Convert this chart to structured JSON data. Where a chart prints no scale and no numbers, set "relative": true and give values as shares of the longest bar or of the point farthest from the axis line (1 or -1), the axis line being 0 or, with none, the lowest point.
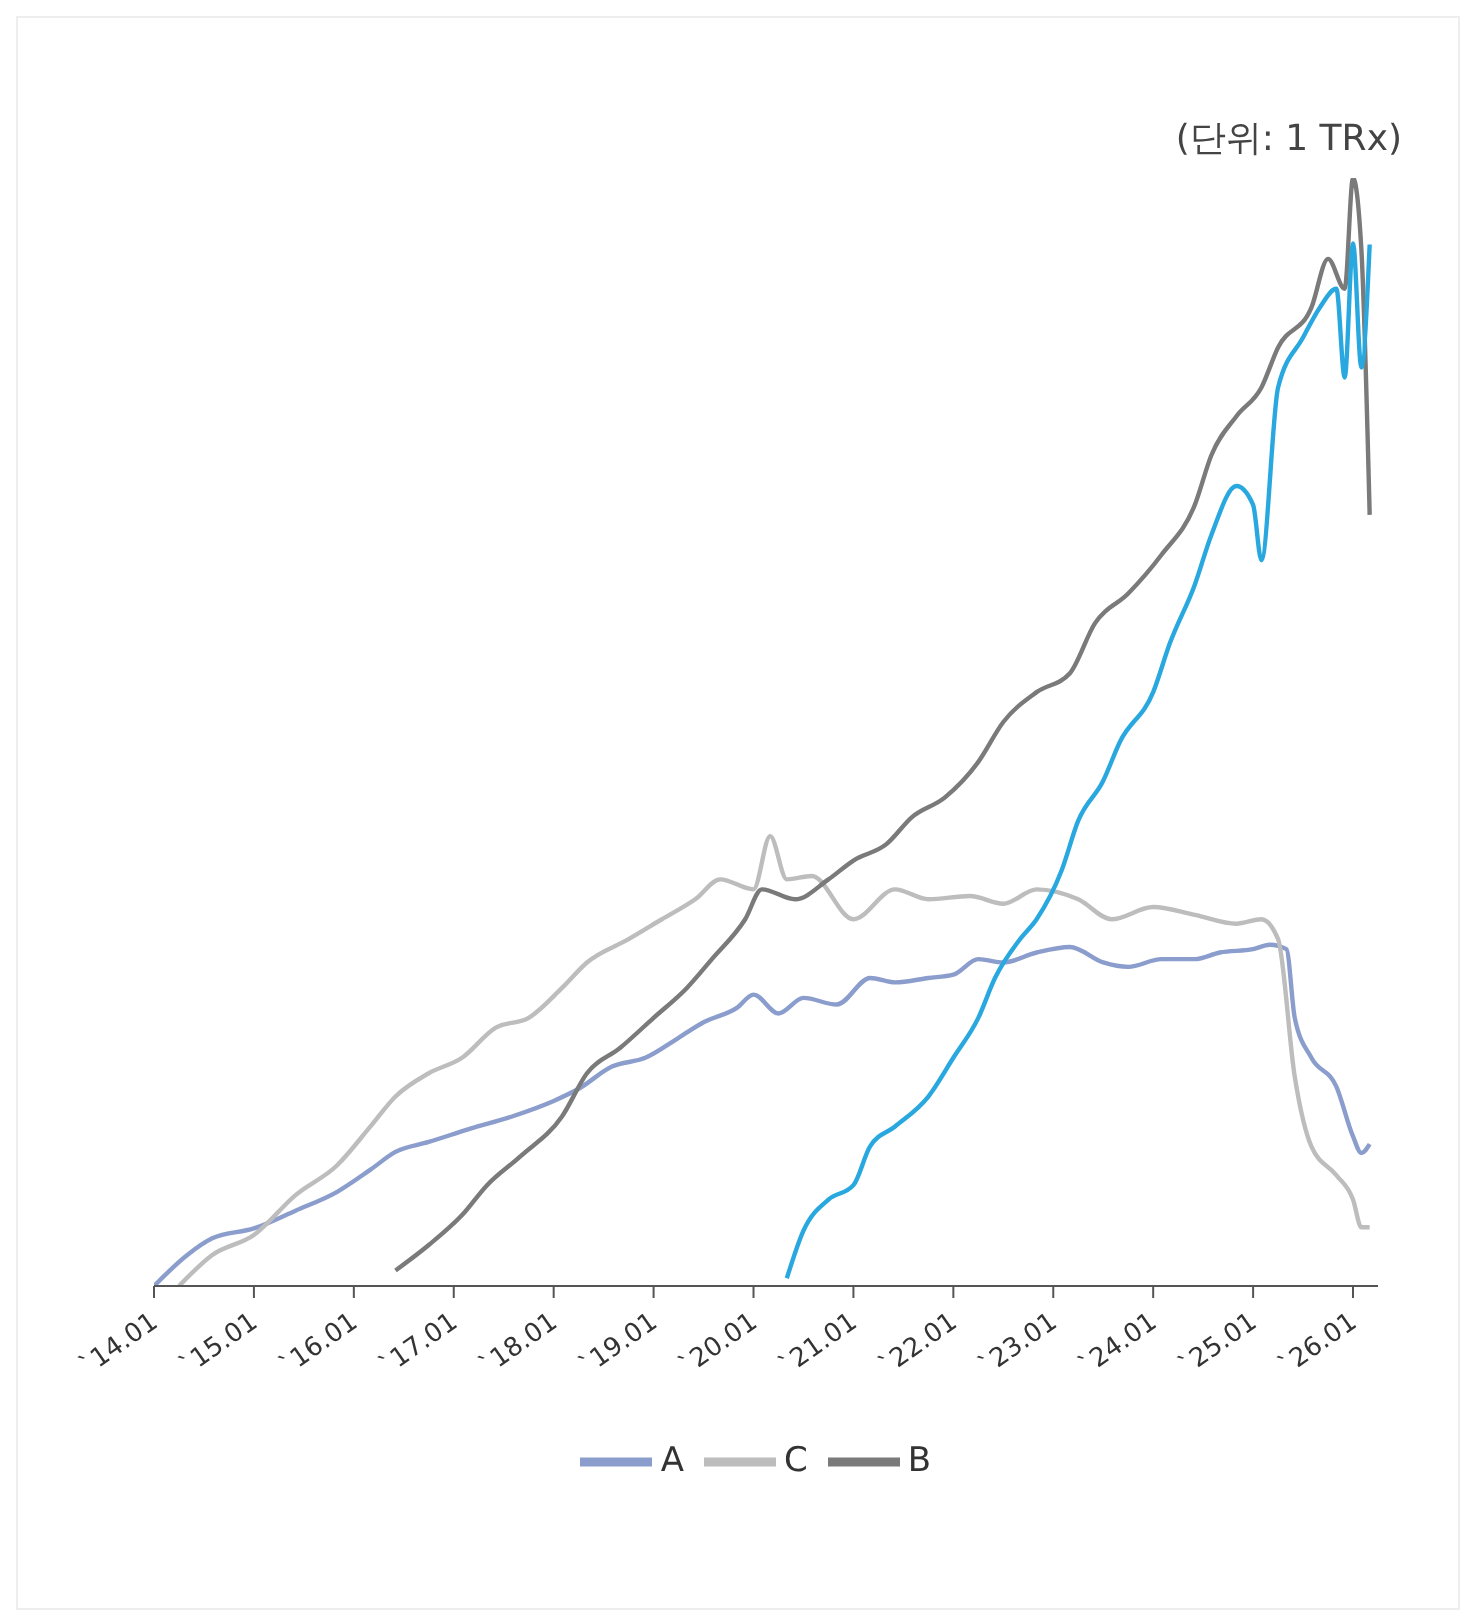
{
  "chart_data": {
    "type": "line",
    "relative": true,
    "annotations": [
      "(단위: 1 TRx)"
    ],
    "xlim": [
      "2014-01",
      "2026-04"
    ],
    "xticks": [
      {
        "value": "2014-01",
        "label": "`14.01"
      },
      {
        "value": "2015-01",
        "label": "`15.01"
      },
      {
        "value": "2016-01",
        "label": "`16.01"
      },
      {
        "value": "2017-01",
        "label": "`17.01"
      },
      {
        "value": "2018-01",
        "label": "`18.01"
      },
      {
        "value": "2019-01",
        "label": "`19.01"
      },
      {
        "value": "2020-01",
        "label": "`20.01"
      },
      {
        "value": "2021-01",
        "label": "`21.01"
      },
      {
        "value": "2022-01",
        "label": "`22.01"
      },
      {
        "value": "2023-01",
        "label": "`23.01"
      },
      {
        "value": "2024-01",
        "label": "`24.01"
      },
      {
        "value": "2025-01",
        "label": "`25.01"
      },
      {
        "value": "2026-01",
        "label": "`26.01"
      }
    ],
    "legend": "bottom",
    "grid": false,
    "marker": "none",
    "line_style": "solid",
    "series": [
      {
        "name": "A",
        "color": "#8a9dcc",
        "x": [
          "2014-01",
          "2014-05",
          "2014-08",
          "2015-01",
          "2015-06",
          "2015-11",
          "2016-03",
          "2016-06",
          "2016-10",
          "2017-03",
          "2017-08",
          "2018-01",
          "2018-04",
          "2018-08",
          "2018-12",
          "2019-04",
          "2019-07",
          "2019-11",
          "2020-01",
          "2020-04",
          "2020-07",
          "2020-11",
          "2021-03",
          "2021-06",
          "2021-10",
          "2022-01",
          "2022-04",
          "2022-07",
          "2022-11",
          "2023-03",
          "2023-07",
          "2023-10",
          "2024-02",
          "2024-06",
          "2024-09",
          "2025-01",
          "2025-03",
          "2025-05",
          "2025-06",
          "2025-08",
          "2025-11",
          "2026-01",
          "2026-02",
          "2026-03"
        ],
        "values": [
          0,
          0.028,
          0.043,
          0.052,
          0.068,
          0.085,
          0.105,
          0.121,
          0.13,
          0.142,
          0.153,
          0.167,
          0.178,
          0.198,
          0.206,
          0.224,
          0.238,
          0.251,
          0.263,
          0.246,
          0.26,
          0.254,
          0.278,
          0.274,
          0.278,
          0.281,
          0.295,
          0.292,
          0.301,
          0.306,
          0.292,
          0.288,
          0.295,
          0.295,
          0.301,
          0.304,
          0.308,
          0.304,
          0.242,
          0.206,
          0.18,
          0.135,
          0.12,
          0.128
        ]
      },
      {
        "name": "C",
        "color": "#bdbdbd",
        "x": [
          "2014-04",
          "2014-08",
          "2015-01",
          "2015-06",
          "2015-11",
          "2016-03",
          "2016-06",
          "2016-10",
          "2017-02",
          "2017-06",
          "2017-10",
          "2018-02",
          "2018-05",
          "2018-10",
          "2019-02",
          "2019-06",
          "2019-09",
          "2020-01",
          "2020-03",
          "2020-05",
          "2020-08",
          "2021-01",
          "2021-06",
          "2021-10",
          "2022-03",
          "2022-07",
          "2022-11",
          "2023-04",
          "2023-08",
          "2024-01",
          "2024-06",
          "2024-11",
          "2025-02",
          "2025-04",
          "2025-06",
          "2025-08",
          "2025-11",
          "2026-01",
          "2026-02",
          "2026-03"
        ],
        "values": [
          0,
          0.028,
          0.046,
          0.082,
          0.109,
          0.144,
          0.171,
          0.192,
          0.206,
          0.233,
          0.242,
          0.269,
          0.292,
          0.313,
          0.331,
          0.349,
          0.367,
          0.358,
          0.406,
          0.367,
          0.37,
          0.331,
          0.358,
          0.349,
          0.352,
          0.345,
          0.358,
          0.349,
          0.331,
          0.342,
          0.335,
          0.327,
          0.331,
          0.313,
          0.189,
          0.126,
          0.1,
          0.078,
          0.053,
          0.053
        ]
      },
      {
        "name": "B",
        "color": "#7a7a7a",
        "x": [
          "2016-06",
          "2016-10",
          "2017-02",
          "2017-05",
          "2017-09",
          "2018-02",
          "2018-05",
          "2018-09",
          "2019-01",
          "2019-05",
          "2019-08",
          "2019-12",
          "2020-02",
          "2020-06",
          "2020-10",
          "2021-01",
          "2021-05",
          "2021-08",
          "2021-12",
          "2022-04",
          "2022-07",
          "2022-11",
          "2023-03",
          "2023-06",
          "2023-10",
          "2024-02",
          "2024-06",
          "2024-08",
          "2024-11",
          "2025-02",
          "2025-04",
          "2025-08",
          "2025-10",
          "2025-12",
          "2026-01",
          "2026-02",
          "2026-03"
        ],
        "values": [
          0.014,
          0.037,
          0.064,
          0.091,
          0.117,
          0.153,
          0.192,
          0.215,
          0.242,
          0.269,
          0.295,
          0.331,
          0.358,
          0.349,
          0.367,
          0.384,
          0.399,
          0.423,
          0.441,
          0.473,
          0.509,
          0.536,
          0.553,
          0.598,
          0.625,
          0.66,
          0.705,
          0.75,
          0.785,
          0.811,
          0.847,
          0.883,
          0.927,
          0.9,
          1,
          0.936,
          0.696
        ]
      },
      {
        "color": "#29a8e0",
        "x": [
          "2020-05",
          "2020-07",
          "2020-10",
          "2021-01",
          "2021-03",
          "2021-06",
          "2021-10",
          "2022-01",
          "2022-04",
          "2022-06",
          "2022-09",
          "2022-11",
          "2023-02",
          "2023-04",
          "2023-07",
          "2023-09",
          "2024-01",
          "2024-03",
          "2024-06",
          "2024-08",
          "2024-11",
          "2025-01",
          "2025-02",
          "2025-04",
          "2025-07",
          "2025-09",
          "2025-11",
          "2025-12",
          "2026-01",
          "2026-02",
          "2026-03"
        ],
        "values": [
          0.007,
          0.05,
          0.078,
          0.091,
          0.126,
          0.144,
          0.171,
          0.206,
          0.242,
          0.278,
          0.313,
          0.331,
          0.375,
          0.42,
          0.456,
          0.491,
          0.536,
          0.58,
          0.633,
          0.678,
          0.722,
          0.705,
          0.655,
          0.811,
          0.856,
          0.883,
          0.9,
          0.82,
          0.941,
          0.829,
          0.94
        ]
      }
    ]
  }
}
